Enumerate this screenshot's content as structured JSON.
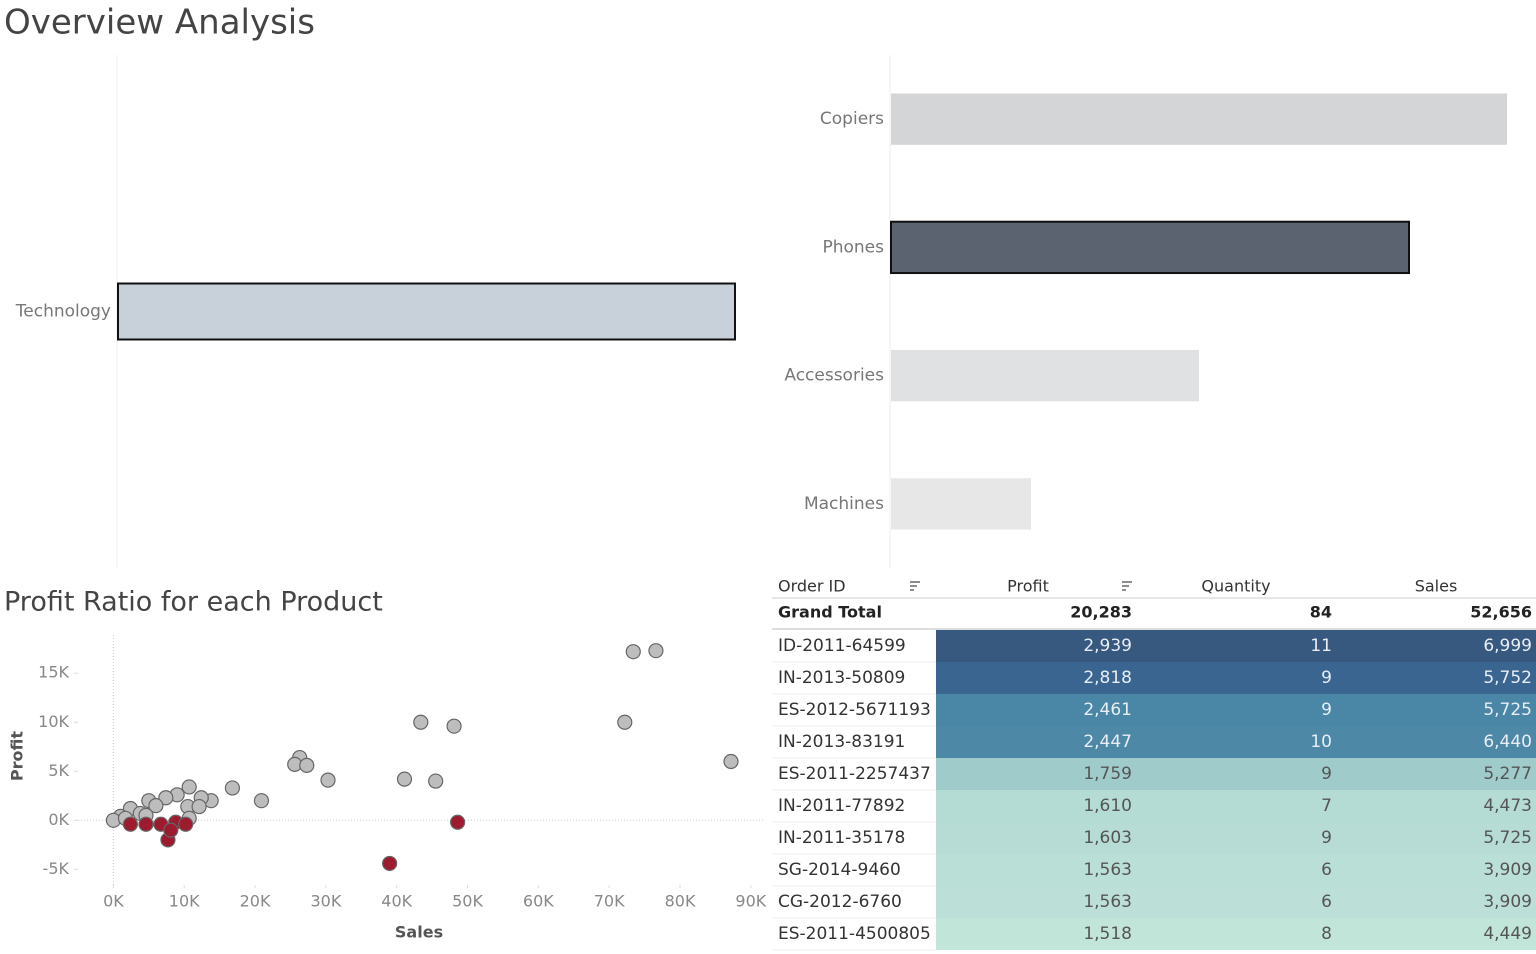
{
  "title": "Overview Analysis",
  "chart_data": [
    {
      "type": "bar",
      "categories": [
        "Technology"
      ],
      "values": [
        617
      ],
      "colors": [
        "#c8d0da"
      ],
      "selected_index": 0
    },
    {
      "type": "bar",
      "categories": [
        "Copiers",
        "Phones",
        "Accessories",
        "Machines"
      ],
      "values": [
        616,
        518,
        308,
        140
      ],
      "colors": [
        "#d4d5d7",
        "#5c6370",
        "#e0e1e2",
        "#e6e7e6"
      ],
      "selected_index": 1
    },
    {
      "type": "scatter",
      "title": "Profit Ratio for each Product",
      "x_label": "Sales",
      "y_label": "Profit",
      "xlim": [
        -5000,
        92000
      ],
      "ylim": [
        -6600,
        18900
      ],
      "xticks": [
        {
          "value": 0,
          "label": "0K"
        },
        {
          "value": 10000,
          "label": "10K"
        },
        {
          "value": 20000,
          "label": "20K"
        },
        {
          "value": 30000,
          "label": "30K"
        },
        {
          "value": 40000,
          "label": "40K"
        },
        {
          "value": 50000,
          "label": "50K"
        },
        {
          "value": 60000,
          "label": "60K"
        },
        {
          "value": 70000,
          "label": "70K"
        },
        {
          "value": 80000,
          "label": "80K"
        },
        {
          "value": 90000,
          "label": "90K"
        }
      ],
      "yticks": [
        {
          "value": -5000,
          "label": "-5K"
        },
        {
          "value": 0,
          "label": "0K"
        },
        {
          "value": 5000,
          "label": "5K"
        },
        {
          "value": 10000,
          "label": "10K"
        },
        {
          "value": 15000,
          "label": "15K"
        }
      ],
      "zero_lines": true,
      "series": [
        {
          "color": "#bdbdbd",
          "x": [
            73400,
            76600,
            72200,
            87200,
            43400,
            48100,
            41100,
            45500,
            26300,
            25600,
            27300,
            30300,
            20900,
            16800,
            10700,
            13800,
            12400,
            9000,
            7400,
            5000,
            6000,
            10500,
            12100,
            2400,
            3800,
            1000,
            0,
            1700,
            10700,
            4600
          ],
          "values": [
            17200,
            17300,
            10000,
            6000,
            10000,
            9600,
            4200,
            4000,
            6400,
            5700,
            5600,
            4100,
            2000,
            3300,
            3400,
            2000,
            2300,
            2600,
            2300,
            2000,
            1500,
            1400,
            1400,
            1200,
            700,
            400,
            0,
            200,
            200,
            500
          ]
        },
        {
          "color": "#9e1a2f",
          "x": [
            39000,
            48600,
            7700,
            6700,
            8800,
            10200,
            2400,
            4600,
            8100
          ],
          "values": [
            -4400,
            -200,
            -2000,
            -400,
            -200,
            -400,
            -400,
            -400,
            -1000
          ]
        }
      ]
    }
  ],
  "table": {
    "columns": [
      "Order ID",
      "Profit",
      "Quantity",
      "Sales"
    ],
    "total": [
      "Grand Total",
      "20,283",
      "84",
      "52,656"
    ],
    "rows": [
      [
        "ID-2011-64599",
        "2,939",
        "11",
        "6,999"
      ],
      [
        "IN-2013-50809",
        "2,818",
        "9",
        "5,752"
      ],
      [
        "ES-2012-5671193",
        "2,461",
        "9",
        "5,725"
      ],
      [
        "IN-2013-83191",
        "2,447",
        "10",
        "6,440"
      ],
      [
        "ES-2011-2257437",
        "1,759",
        "9",
        "5,277"
      ],
      [
        "IN-2011-77892",
        "1,610",
        "7",
        "4,473"
      ],
      [
        "IN-2011-35178",
        "1,603",
        "9",
        "5,725"
      ],
      [
        "SG-2014-9460",
        "1,563",
        "6",
        "3,909"
      ],
      [
        "CG-2012-6760",
        "1,563",
        "6",
        "3,909"
      ],
      [
        "ES-2011-4500805",
        "1,518",
        "8",
        "4,449"
      ]
    ],
    "row_colors": [
      "#37587f",
      "#3a6590",
      "#4a86a6",
      "#4d88a7",
      "#9fcbcb",
      "#b4dbd4",
      "#b6dcd5",
      "#badfd6",
      "#bcdfd7",
      "#c2e5da"
    ]
  }
}
